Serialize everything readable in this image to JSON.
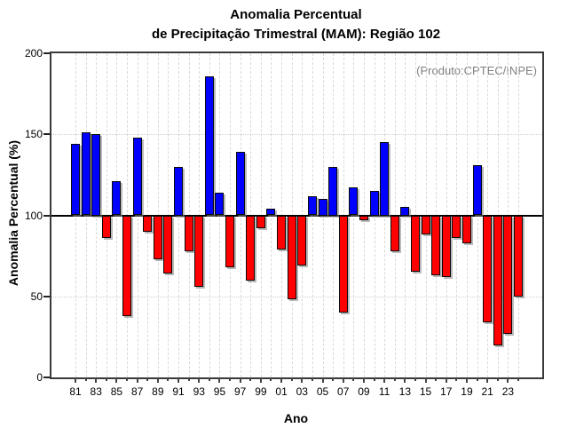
{
  "chart_data": {
    "type": "bar",
    "title": "Anomalia Percentual",
    "subtitle": "de Precipitação Trimestral (MAM): Região 102",
    "xlabel": "Ano",
    "ylabel": "Anomalia Percentual (%)",
    "annotation": "(Produto:CPTEC/INPE)",
    "ylim": [
      0,
      200
    ],
    "yticks": [
      0,
      50,
      100,
      150,
      200
    ],
    "grid_y": [
      50,
      150
    ],
    "baseline": 100,
    "legend_position": "none",
    "colors": {
      "above_baseline": "#0000ff",
      "below_baseline": "#ff0000",
      "annotation": "#808080"
    },
    "years": [
      "81",
      "82",
      "83",
      "84",
      "85",
      "86",
      "87",
      "88",
      "89",
      "90",
      "91",
      "92",
      "93",
      "94",
      "95",
      "96",
      "97",
      "98",
      "99",
      "00",
      "01",
      "02",
      "03",
      "04",
      "05",
      "06",
      "07",
      "08",
      "09",
      "10",
      "11",
      "12",
      "13",
      "14",
      "15",
      "16",
      "17",
      "18",
      "19",
      "20",
      "21",
      "22",
      "23",
      "24"
    ],
    "values": [
      144,
      151,
      150,
      86,
      121,
      38,
      148,
      90,
      73,
      64,
      130,
      78,
      56,
      186,
      114,
      68,
      139,
      60,
      92,
      104,
      79,
      48,
      69,
      112,
      110,
      130,
      40,
      117,
      97,
      115,
      145,
      78,
      105,
      65,
      88,
      63,
      62,
      86,
      83,
      131,
      34,
      20,
      27,
      50
    ]
  }
}
